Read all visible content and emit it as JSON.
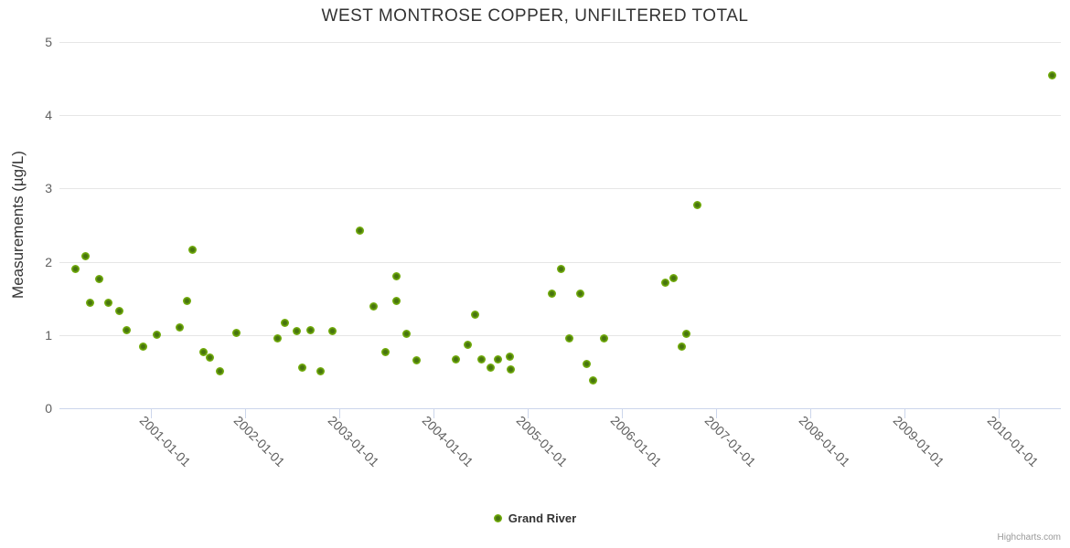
{
  "title": "WEST MONTROSE COPPER, UNFILTERED TOTAL",
  "credits": "Highcharts.com",
  "legend": {
    "position": "bottom-center",
    "items": [
      {
        "label": "Grand River"
      }
    ]
  },
  "colors": {
    "background": "#ffffff",
    "title_text": "#333333",
    "axis_title_text": "#333333",
    "axis_label_text": "#606060",
    "legend_text": "#333333",
    "gridline": "#e6e6e6",
    "axis_line": "#ccd6eb",
    "credits_text": "#999999",
    "series_green_edge": "#86bd26",
    "series_green_mid": "#6fa90a",
    "series_green_core": "#47740f"
  },
  "chart_data": {
    "type": "scatter",
    "title": "WEST MONTROSE COPPER, UNFILTERED TOTAL",
    "xlabel": "",
    "ylabel": "Measurements (µg/L)",
    "ylim": [
      0,
      5
    ],
    "yticks": [
      0,
      1,
      2,
      3,
      4,
      5
    ],
    "xticks": [
      "2001-01-01",
      "2002-01-01",
      "2003-01-01",
      "2004-01-01",
      "2005-01-01",
      "2006-01-01",
      "2007-01-01",
      "2008-01-01",
      "2009-01-01",
      "2010-01-01"
    ],
    "x_axis_type": "datetime",
    "xlim_decimal_years": [
      2000.03,
      2010.68
    ],
    "grid": "horizontal-only",
    "legend_position": "bottom-center",
    "marker": "circle",
    "series": [
      {
        "name": "Grand River",
        "points": [
          [
            "2000-03-15",
            1.9
          ],
          [
            "2000-04-23",
            2.08
          ],
          [
            "2000-05-09",
            1.44
          ],
          [
            "2000-06-13",
            1.76
          ],
          [
            "2000-07-18",
            1.44
          ],
          [
            "2000-08-31",
            1.33
          ],
          [
            "2000-09-28",
            1.06
          ],
          [
            "2000-12-01",
            0.84
          ],
          [
            "2001-01-24",
            1.0
          ],
          [
            "2001-04-22",
            1.1
          ],
          [
            "2001-05-22",
            1.46
          ],
          [
            "2001-06-11",
            2.16
          ],
          [
            "2001-07-24",
            0.77
          ],
          [
            "2001-08-19",
            0.69
          ],
          [
            "2001-09-26",
            0.5
          ],
          [
            "2001-11-28",
            1.03
          ],
          [
            "2002-05-06",
            0.96
          ],
          [
            "2002-06-05",
            1.16
          ],
          [
            "2002-07-20",
            1.05
          ],
          [
            "2002-08-12",
            0.56
          ],
          [
            "2002-09-13",
            1.06
          ],
          [
            "2002-10-22",
            0.5
          ],
          [
            "2002-12-07",
            1.05
          ],
          [
            "2003-03-22",
            2.43
          ],
          [
            "2003-05-14",
            1.39
          ],
          [
            "2003-06-28",
            0.77
          ],
          [
            "2003-08-09",
            1.8
          ],
          [
            "2003-08-11",
            1.46
          ],
          [
            "2003-09-18",
            1.02
          ],
          [
            "2003-10-27",
            0.65
          ],
          [
            "2004-03-29",
            0.67
          ],
          [
            "2004-05-13",
            0.87
          ],
          [
            "2004-06-11",
            1.28
          ],
          [
            "2004-07-05",
            0.67
          ],
          [
            "2004-08-10",
            0.55
          ],
          [
            "2004-09-09",
            0.67
          ],
          [
            "2004-10-23",
            0.71
          ],
          [
            "2004-10-29",
            0.53
          ],
          [
            "2005-04-04",
            1.56
          ],
          [
            "2005-05-12",
            1.9
          ],
          [
            "2005-06-13",
            0.95
          ],
          [
            "2005-07-22",
            1.56
          ],
          [
            "2005-08-17",
            0.6
          ],
          [
            "2005-09-13",
            0.38
          ],
          [
            "2005-10-23",
            0.96
          ],
          [
            "2006-06-18",
            1.72
          ],
          [
            "2006-07-20",
            1.78
          ],
          [
            "2006-08-20",
            0.84
          ],
          [
            "2006-09-07",
            1.01
          ],
          [
            "2006-10-21",
            2.78
          ],
          [
            "2010-07-28",
            4.55
          ]
        ]
      }
    ]
  }
}
